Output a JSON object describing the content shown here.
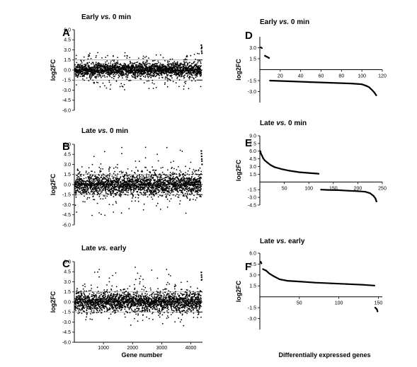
{
  "figure": {
    "left_xlabel": "Gene number",
    "right_xlabel": "Differentially expressed genes"
  },
  "chart_data": [
    {
      "id": "A",
      "panel_letter": "A",
      "type": "scatter",
      "title_main": "Early ",
      "title_italic": "vs.",
      "title_tail": " 0 min",
      "ylabel": "log2FC",
      "xlabel": "",
      "xlim": [
        0,
        4400
      ],
      "ylim": [
        -6,
        6
      ],
      "xticks": [],
      "yticks": [
        -6,
        -4.5,
        -3,
        -1.5,
        0,
        1.5,
        3,
        4.5,
        6
      ],
      "yticklabels": [
        "-6.0",
        "-4.5",
        "-3.0",
        "-1.5",
        "0.0",
        "1.5",
        "3.0",
        "4.5",
        "6.0"
      ],
      "threshold_lines": [
        1.5,
        -1.5
      ],
      "n_genes": 4400,
      "distribution": {
        "sd": 0.55,
        "spread_upper": 2.6,
        "spread_lower": -3.3,
        "edge_outliers": [
          3.7,
          3.2,
          2.8,
          3.4,
          2.5
        ]
      }
    },
    {
      "id": "B",
      "panel_letter": "B",
      "type": "scatter",
      "title_main": "Late ",
      "title_italic": "vs.",
      "title_tail": " 0 min",
      "ylabel": "log2FC",
      "xlabel": "",
      "xlim": [
        0,
        4400
      ],
      "ylim": [
        -6,
        6
      ],
      "xticks": [],
      "yticks": [
        -6,
        -4.5,
        -3,
        -1.5,
        0,
        1.5,
        3,
        4.5,
        6
      ],
      "yticklabels": [
        "-6.0",
        "-4.5",
        "-3.0",
        "-1.5",
        "0.0",
        "1.5",
        "3.0",
        "4.5",
        "6.0"
      ],
      "threshold_lines": [
        1.5,
        -1.5
      ],
      "n_genes": 4400,
      "distribution": {
        "sd": 0.8,
        "spread_upper": 5.7,
        "spread_lower": -4.6,
        "edge_outliers": [
          5.0,
          4.6,
          4.2,
          3.8,
          3.5,
          3.0
        ]
      }
    },
    {
      "id": "C",
      "panel_letter": "C",
      "type": "scatter",
      "title_main": "Late ",
      "title_italic": "vs.",
      "title_tail": " early",
      "ylabel": "log2FC",
      "xlabel": "Gene number",
      "xlim": [
        0,
        4400
      ],
      "ylim": [
        -6,
        6
      ],
      "xticks": [
        1000,
        2000,
        3000,
        4000
      ],
      "yticks": [
        -6,
        -4.5,
        -3,
        -1.5,
        0,
        1.5,
        3,
        4.5,
        6
      ],
      "yticklabels": [
        "-6.0",
        "-4.5",
        "-3.0",
        "-1.5",
        "0.0",
        "1.5",
        "3.0",
        "4.5",
        "6.0"
      ],
      "threshold_lines": [
        1.5,
        -1.5
      ],
      "n_genes": 4400,
      "distribution": {
        "sd": 0.75,
        "spread_upper": 5.2,
        "spread_lower": -3.7,
        "edge_outliers": [
          4.4,
          4.0,
          3.7,
          3.3
        ]
      }
    },
    {
      "id": "D",
      "panel_letter": "D",
      "type": "line",
      "title_main": "Early ",
      "title_italic": "vs.",
      "title_tail": " 0 min",
      "ylabel": "log2FC",
      "xlabel": "",
      "xlim": [
        0,
        120
      ],
      "ylim": [
        -4.5,
        4.5
      ],
      "xticks": [
        20,
        40,
        60,
        80,
        100,
        120
      ],
      "yticks": [
        -3,
        -1.5,
        1.5,
        3
      ],
      "yticklabels": [
        "-3.0",
        "-1.5",
        "1.5",
        "3.0"
      ],
      "series": [
        {
          "x": [
            1,
            2
          ],
          "y": [
            3.05,
            2.95
          ]
        },
        {
          "x": [
            5,
            7,
            9
          ],
          "y": [
            1.9,
            1.75,
            1.6
          ]
        },
        {
          "x": [
            10,
            30,
            50,
            70,
            90,
            100,
            104,
            107,
            110,
            112,
            114
          ],
          "y": [
            -1.5,
            -1.6,
            -1.7,
            -1.8,
            -1.9,
            -2.0,
            -2.2,
            -2.4,
            -2.8,
            -3.1,
            -3.5
          ]
        }
      ]
    },
    {
      "id": "E",
      "panel_letter": "E",
      "type": "line",
      "title_main": "Late ",
      "title_italic": "vs.",
      "title_tail": " 0 min",
      "ylabel": "log2FC",
      "xlabel": "",
      "xlim": [
        0,
        250
      ],
      "ylim": [
        -4.5,
        9
      ],
      "xticks": [
        50,
        100,
        150,
        200,
        250
      ],
      "yticks": [
        -4.5,
        -3,
        -1.5,
        1.5,
        3,
        4.5,
        6,
        7.5,
        9
      ],
      "yticklabels": [
        "-4.5",
        "-3.0",
        "-1.5",
        "1.5",
        "3.0",
        "4.5",
        "6.0",
        "7.5",
        "9.0"
      ],
      "series": [
        {
          "x": [
            1,
            2,
            4,
            7,
            10,
            15,
            22,
            30,
            45,
            60,
            80,
            100,
            115,
            120
          ],
          "y": [
            6.0,
            5.6,
            5.2,
            4.6,
            4.2,
            3.8,
            3.3,
            2.9,
            2.5,
            2.2,
            1.9,
            1.75,
            1.65,
            1.6
          ]
        },
        {
          "x": [
            125,
            140,
            160,
            180,
            200,
            215,
            225,
            232,
            236,
            238
          ],
          "y": [
            -1.5,
            -1.55,
            -1.6,
            -1.7,
            -1.8,
            -1.9,
            -2.2,
            -2.7,
            -3.2,
            -3.8
          ]
        }
      ]
    },
    {
      "id": "F",
      "panel_letter": "F",
      "type": "line",
      "title_main": "Late ",
      "title_italic": "vs.",
      "title_tail": " early",
      "ylabel": "log2FC",
      "xlabel": "Differentially expressed genes",
      "xlim": [
        0,
        155
      ],
      "ylim": [
        -4.5,
        6
      ],
      "xticks": [
        50,
        100,
        150
      ],
      "yticks": [
        -3,
        -1.5,
        1.5,
        3,
        4.5,
        6
      ],
      "yticklabels": [
        "-3.0",
        "-1.5",
        "1.5",
        "3.0",
        "4.5",
        "6.0"
      ],
      "series": [
        {
          "x": [
            1,
            2
          ],
          "y": [
            4.8,
            4.6
          ]
        },
        {
          "x": [
            4,
            8,
            12,
            18,
            25,
            35,
            50,
            70,
            90,
            110,
            130,
            145
          ],
          "y": [
            3.8,
            3.6,
            3.2,
            2.8,
            2.4,
            2.2,
            2.1,
            1.95,
            1.85,
            1.75,
            1.65,
            1.55
          ]
        },
        {
          "x": [
            146,
            148,
            149
          ],
          "y": [
            -1.5,
            -1.7,
            -2.0
          ]
        }
      ]
    }
  ]
}
